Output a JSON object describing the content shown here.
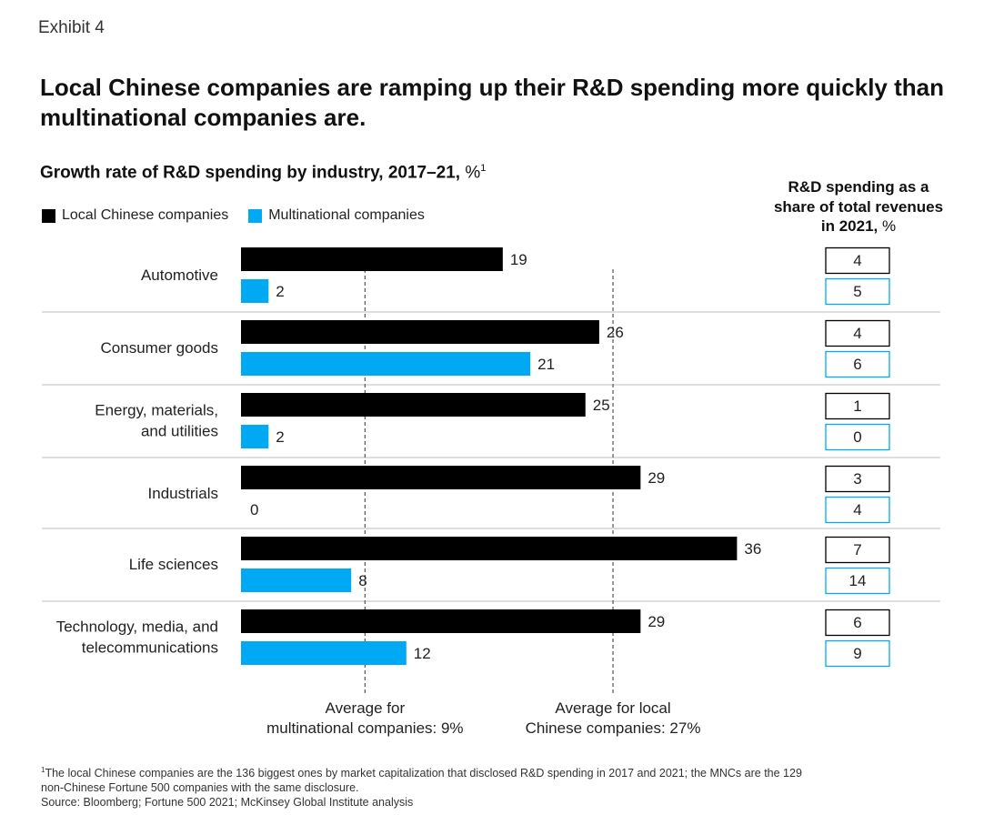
{
  "exhibit_label": "Exhibit 4",
  "headline": "Local Chinese companies are ramping up their R&D spending more quickly than multinational companies are.",
  "subtitle": "Growth rate of R&D spending by industry, 2017–21,",
  "subtitle_unit": "%",
  "subtitle_footnote_mark": "1",
  "side_header": "R&D spending as a share of total revenues in 2021,",
  "side_header_unit": "%",
  "colors": {
    "local": "#000000",
    "multinational": "#00a9f4",
    "gridline": "#bdbdbd",
    "reference_line": "#555555"
  },
  "chart_data": {
    "type": "bar",
    "orientation": "horizontal",
    "categories": [
      "Automotive",
      "Consumer goods",
      "Energy, materials, and utilities",
      "Industrials",
      "Life sciences",
      "Technology, media, and telecommunications"
    ],
    "category_lines": [
      [
        "Automotive"
      ],
      [
        "Consumer goods"
      ],
      [
        "Energy, materials,",
        "and utilities"
      ],
      [
        "Industrials"
      ],
      [
        "Life sciences"
      ],
      [
        "Technology, media, and",
        "telecommunications"
      ]
    ],
    "series": [
      {
        "name": "Local Chinese companies",
        "values": [
          19,
          26,
          25,
          29,
          36,
          29
        ],
        "color": "#000000"
      },
      {
        "name": "Multinational companies",
        "values": [
          2,
          21,
          2,
          0,
          8,
          12
        ],
        "color": "#00a9f4"
      }
    ],
    "reference_lines": [
      {
        "value": 9,
        "label_lines": [
          "Average for",
          "multinational companies: 9%"
        ]
      },
      {
        "value": 27,
        "label_lines": [
          "Average for local",
          "Chinese companies: 27%"
        ]
      }
    ],
    "xlim": [
      0,
      40
    ],
    "share_of_revenues": {
      "local": [
        4,
        4,
        1,
        3,
        7,
        6
      ],
      "multinational": [
        5,
        6,
        0,
        4,
        14,
        9
      ]
    },
    "legend_position": "top-left"
  },
  "footnote_mark": "1",
  "footnote_text": [
    "The local Chinese companies are the 136 biggest ones by market capitalization that disclosed R&D spending in 2017 and 2021; the MNCs are the 129",
    " non-Chinese Fortune 500 companies with the same disclosure."
  ],
  "source": "Source: Bloomberg; Fortune 500 2021; McKinsey Global Institute analysis"
}
